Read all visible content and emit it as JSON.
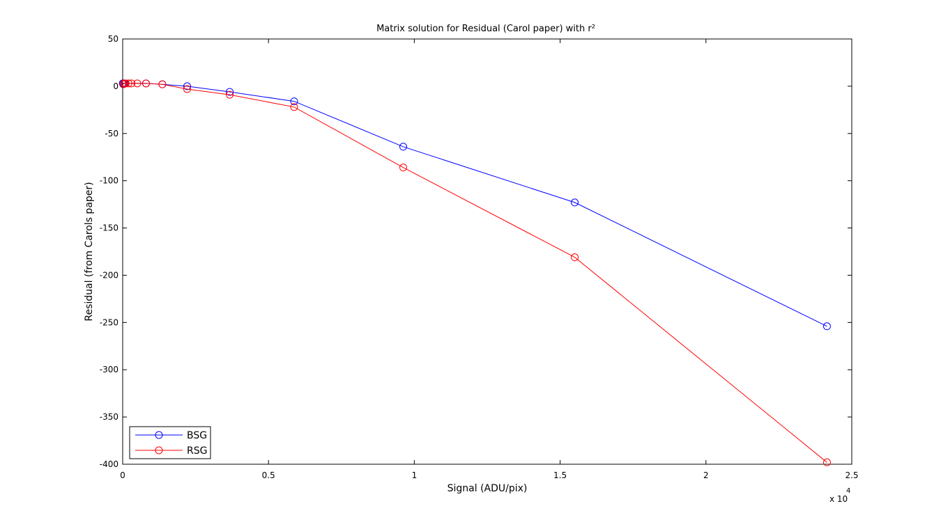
{
  "chart_data": {
    "type": "line",
    "title": "Matrix solution for Residual (Carol paper) with r²",
    "xlabel": "Signal (ADU/pix)",
    "ylabel": "Residual (from Carols paper)",
    "x_exponent_base": "x 10",
    "x_exponent_power": "4",
    "xlim": [
      0,
      2.5
    ],
    "ylim": [
      -400,
      50
    ],
    "x_ticks": [
      0,
      0.5,
      1,
      1.5,
      2,
      2.5
    ],
    "x_tick_labels": [
      "0",
      "0.5",
      "1",
      "1.5",
      "2",
      "2.5"
    ],
    "y_ticks": [
      50,
      0,
      -50,
      -100,
      -150,
      -200,
      -250,
      -300,
      -350,
      -400
    ],
    "y_tick_labels": [
      "50",
      "0",
      "-50",
      "-100",
      "-150",
      "-200",
      "-250",
      "-300",
      "-350",
      "-400"
    ],
    "grid": false,
    "legend_position": "bottom-left",
    "series": [
      {
        "name": "BSG",
        "color": "#0000ff",
        "marker": "circle",
        "x": [
          0.0005,
          0.001,
          0.002,
          0.004,
          0.008,
          0.08,
          0.136,
          0.221,
          0.367,
          0.588,
          0.962,
          1.55,
          2.415
        ],
        "y": [
          3,
          3,
          3,
          3,
          3,
          3,
          2,
          0,
          -6,
          -16,
          -64,
          -123,
          -254
        ]
      },
      {
        "name": "RSG",
        "color": "#ff0000",
        "marker": "circle",
        "x": [
          0.002,
          0.005,
          0.01,
          0.02,
          0.03,
          0.05,
          0.08,
          0.136,
          0.221,
          0.367,
          0.588,
          0.962,
          1.55,
          2.415
        ],
        "y": [
          2,
          3,
          3,
          3,
          3,
          3,
          3,
          2,
          -3,
          -9,
          -22,
          -86,
          -181,
          -398
        ]
      }
    ]
  }
}
